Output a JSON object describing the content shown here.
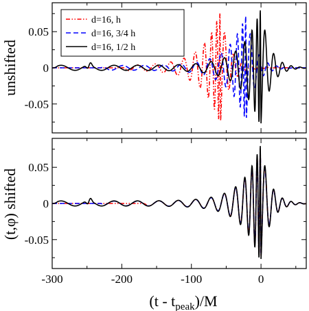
{
  "chart_data": [
    {
      "type": "line",
      "panel": "top",
      "ylabel": "unshifted",
      "xlim": [
        -300,
        65
      ],
      "ylim": [
        -0.09,
        0.09
      ],
      "yticks": [
        {
          "value": 0.05,
          "label": "0.05"
        },
        {
          "value": 0,
          "label": "0"
        },
        {
          "value": -0.05,
          "label": "-0.05"
        }
      ],
      "legend": {
        "placement": "top-left",
        "entries": [
          {
            "label": "d=16, h",
            "color": "#ff0000",
            "dash": "dash-dot-dot"
          },
          {
            "label": "d=16, 3/4 h",
            "color": "#0000ff",
            "dash": "dashed"
          },
          {
            "label": "d=16, 1/2 h",
            "color": "#000000",
            "dash": "solid"
          }
        ]
      },
      "series": [
        {
          "name": "d=16, h",
          "color": "#ff0000",
          "dash": "dash-dot-dot",
          "shift": 58,
          "scale": 0.95,
          "merge": -200
        },
        {
          "name": "d=16, 3/4 h",
          "color": "#0000ff",
          "dash": "dashed",
          "shift": 21,
          "scale": 0.9,
          "merge": -230
        },
        {
          "name": "d=16, 1/2 h",
          "color": "#000000",
          "dash": "solid",
          "shift": 0,
          "scale": 1.0,
          "merge": -300
        }
      ]
    },
    {
      "type": "line",
      "panel": "bottom",
      "ylabel": "(t,φ) shifted",
      "xlabel": "(t - t_peak)/M",
      "xlabel_main": "(t - t",
      "xlabel_sub": "peak",
      "xlabel_end": ")/M",
      "xlim": [
        -300,
        65
      ],
      "ylim": [
        -0.09,
        0.09
      ],
      "xticks": [
        {
          "value": -300,
          "label": "-300"
        },
        {
          "value": -200,
          "label": "-200"
        },
        {
          "value": -100,
          "label": "-100"
        },
        {
          "value": 0,
          "label": "0"
        }
      ],
      "yticks": [
        {
          "value": 0.05,
          "label": "0.05"
        },
        {
          "value": 0,
          "label": "0"
        },
        {
          "value": -0.05,
          "label": "-0.05"
        }
      ],
      "series": [
        {
          "name": "d=16, h",
          "color": "#ff0000",
          "dash": "dash-dot-dot",
          "shift": 0,
          "scale": 0.95,
          "merge": -170
        },
        {
          "name": "d=16, 3/4 h",
          "color": "#0000ff",
          "dash": "dashed",
          "shift": 0,
          "scale": 0.93,
          "merge": -230
        },
        {
          "name": "d=16, 1/2 h",
          "color": "#000000",
          "dash": "solid",
          "shift": 0,
          "scale": 1.0,
          "merge": -300
        }
      ]
    }
  ]
}
